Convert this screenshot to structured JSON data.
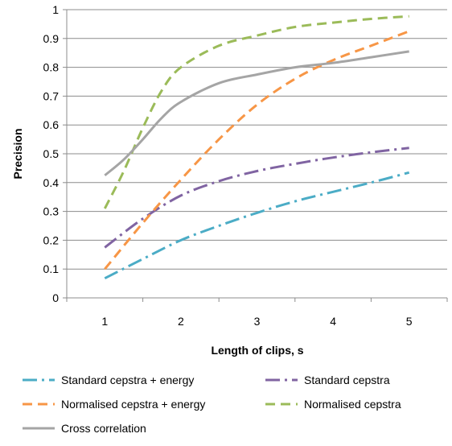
{
  "chart_data": {
    "type": "line",
    "title": "",
    "xlabel": "Length of clips, s",
    "ylabel": "Precision",
    "xlim": [
      0.5,
      5.5
    ],
    "ylim": [
      0,
      1
    ],
    "x_ticks": [
      "1",
      "2",
      "3",
      "4",
      "5"
    ],
    "y_ticks": [
      "0",
      "0.1",
      "0.2",
      "0.3",
      "0.4",
      "0.5",
      "0.6",
      "0.7",
      "0.8",
      "0.9",
      "1"
    ],
    "grid": "horizontal",
    "legend_position": "bottom",
    "series": [
      {
        "name": "Standard cepstra + energy",
        "color": "#4bacc6",
        "dash": "dash-dot",
        "x": [
          1,
          1.5,
          2,
          2.5,
          3,
          3.5,
          4,
          4.5,
          5
        ],
        "y": [
          0.068,
          0.135,
          0.2,
          0.25,
          0.295,
          0.335,
          0.368,
          0.4,
          0.435
        ]
      },
      {
        "name": "Standard cepstra",
        "color": "#8064a2",
        "dash": "dash-dot",
        "x": [
          1,
          1.5,
          2,
          2.5,
          3,
          3.5,
          4,
          4.5,
          5
        ],
        "y": [
          0.175,
          0.275,
          0.355,
          0.405,
          0.44,
          0.465,
          0.487,
          0.505,
          0.52
        ]
      },
      {
        "name": "Normalised cepstra + energy",
        "color": "#f79646",
        "dash": "dashed",
        "x": [
          1,
          1.5,
          2,
          2.5,
          3,
          3.5,
          4,
          4.5,
          5
        ],
        "y": [
          0.1,
          0.26,
          0.41,
          0.55,
          0.67,
          0.76,
          0.825,
          0.875,
          0.925
        ]
      },
      {
        "name": "Normalised cepstra",
        "color": "#9bbb59",
        "dash": "dashed",
        "x": [
          1,
          1.25,
          1.5,
          1.75,
          2,
          2.5,
          3,
          3.5,
          4,
          4.5,
          5
        ],
        "y": [
          0.31,
          0.44,
          0.59,
          0.72,
          0.8,
          0.875,
          0.91,
          0.94,
          0.955,
          0.968,
          0.977
        ]
      },
      {
        "name": "Cross correlation",
        "color": "#a5a5a5",
        "dash": "solid",
        "x": [
          1,
          1.25,
          1.5,
          1.75,
          2,
          2.5,
          3,
          3.5,
          4,
          4.5,
          5
        ],
        "y": [
          0.425,
          0.48,
          0.55,
          0.625,
          0.68,
          0.745,
          0.775,
          0.8,
          0.815,
          0.835,
          0.855
        ]
      }
    ]
  }
}
